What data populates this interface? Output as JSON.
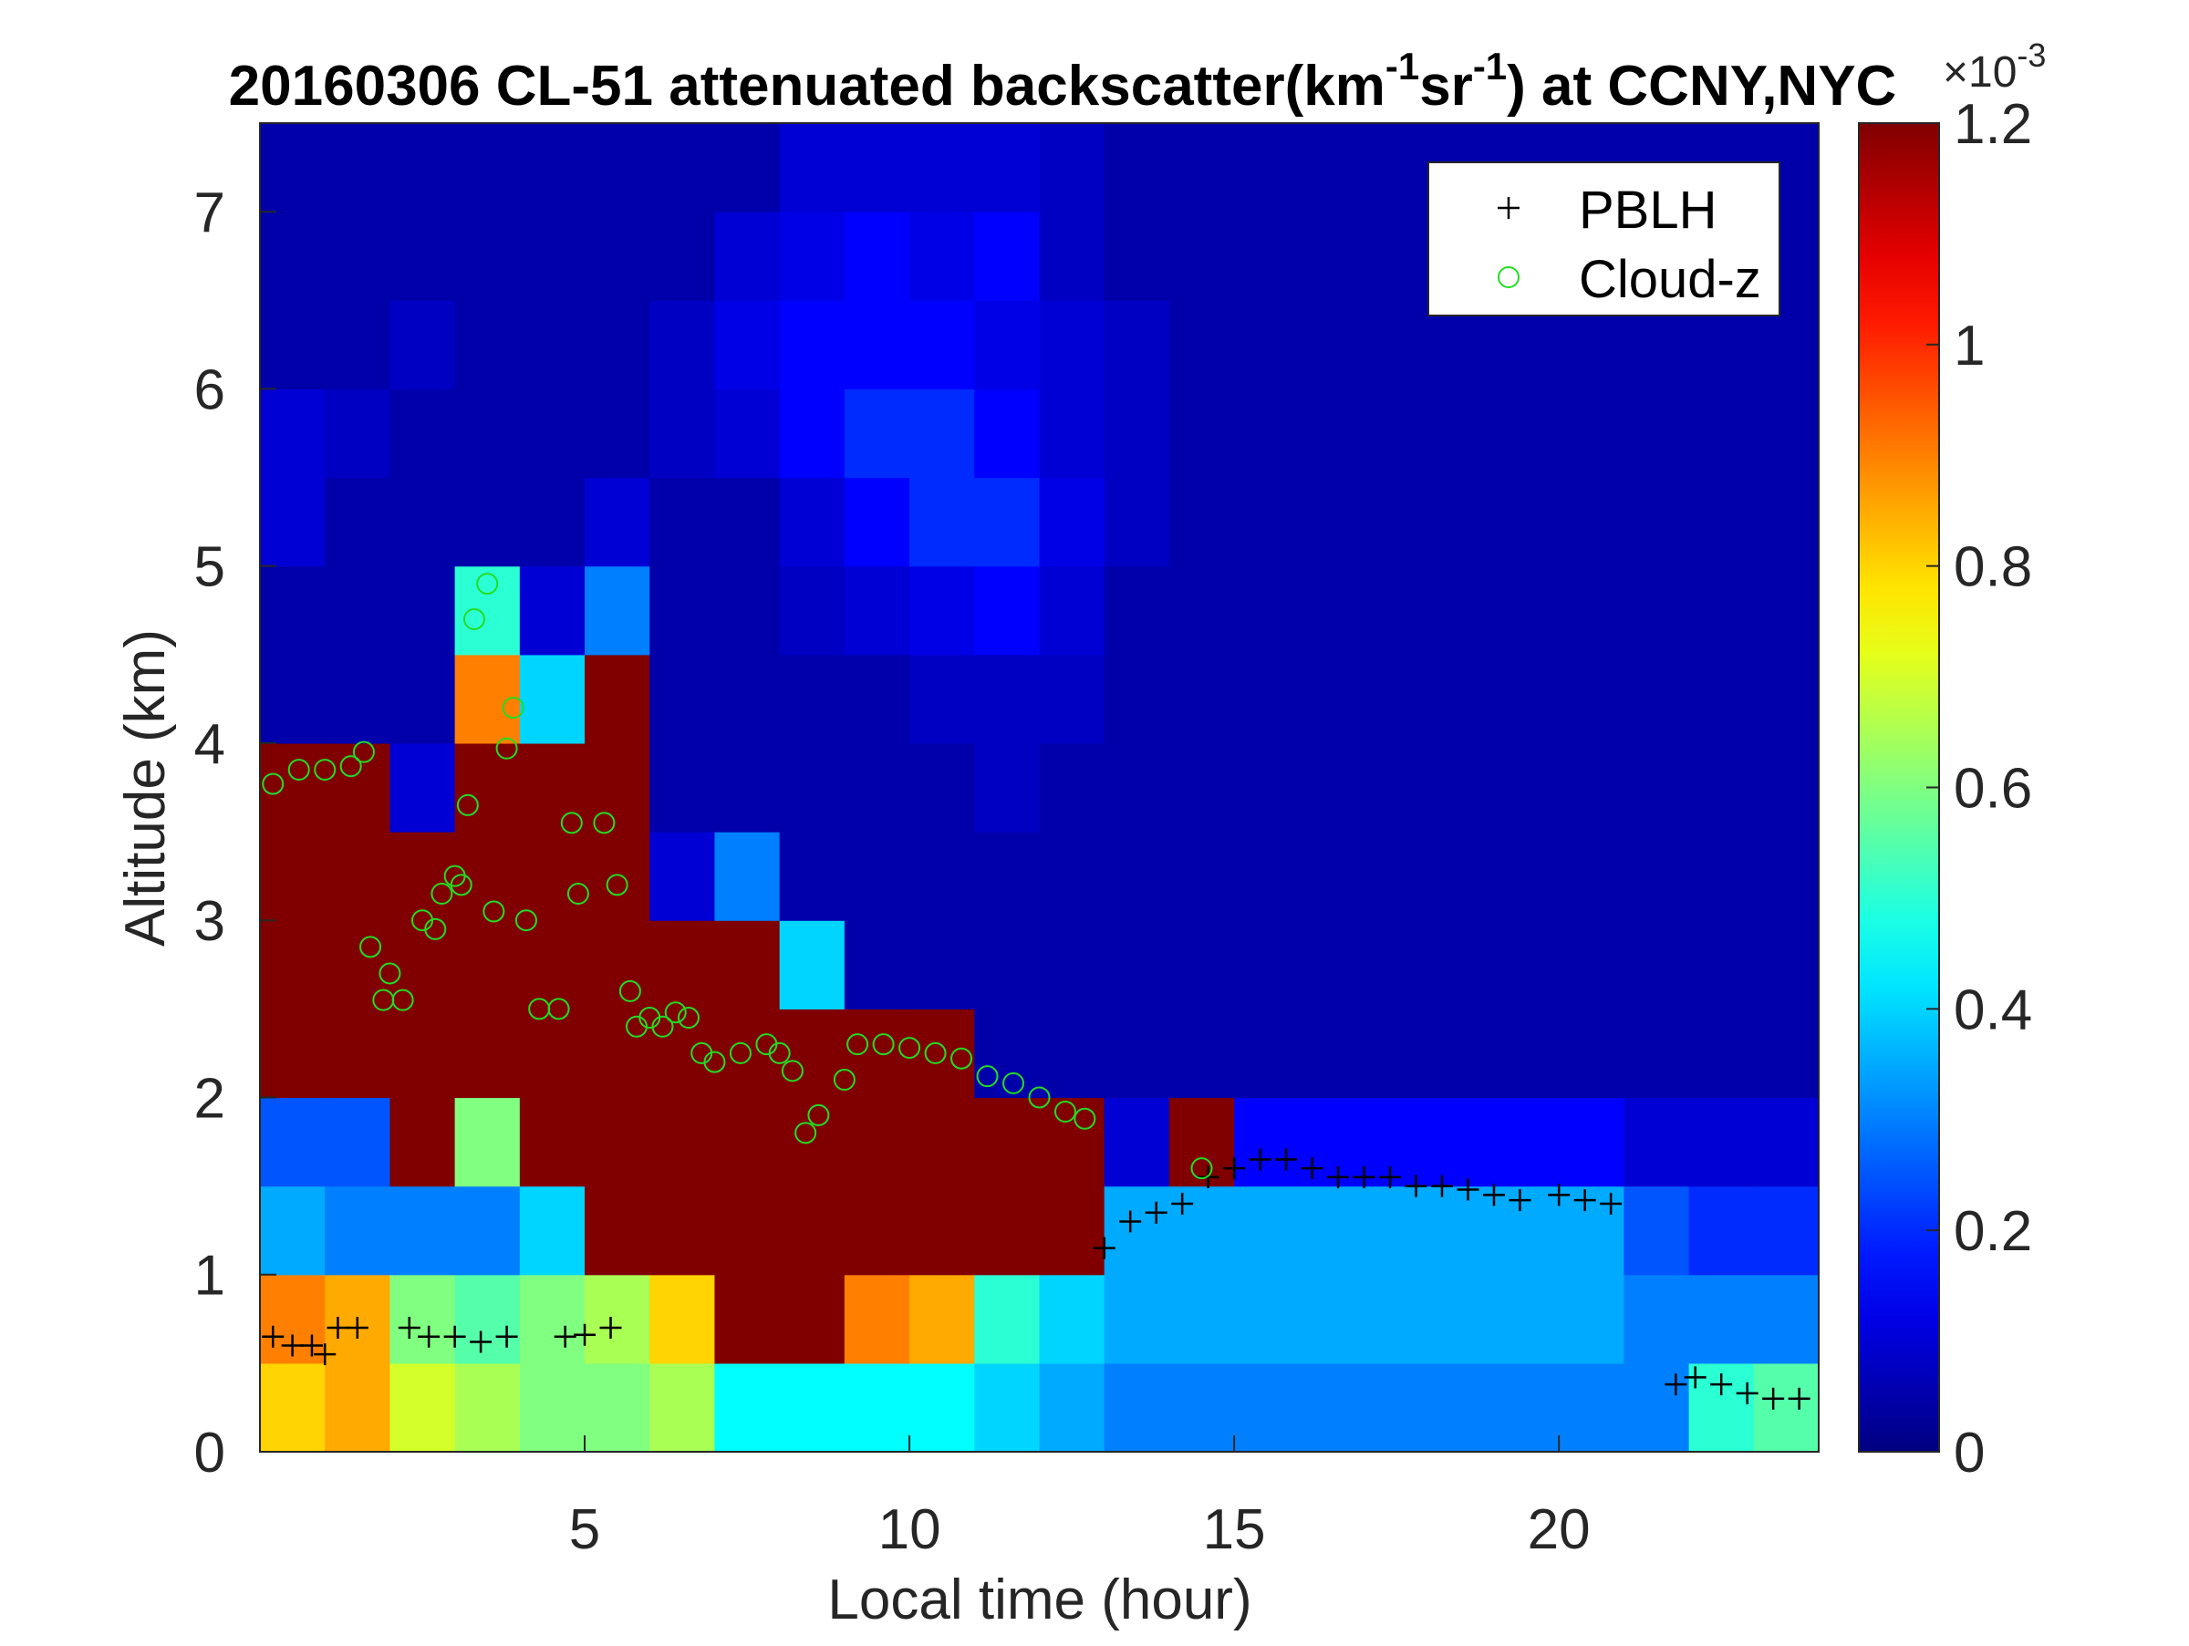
{
  "chart_data": {
    "type": "heatmap",
    "title": [
      "20160306  CL-51 attenuated backscatter(km",
      "-1",
      "sr",
      "-1",
      ") at CCNY,NYC"
    ],
    "x_label": "Local time (hour)",
    "y_label": "Altitude (km)",
    "colorbar_label": [
      "×10",
      "-3"
    ],
    "colormap": "jet",
    "xlim": [
      0,
      24
    ],
    "xticks": [
      5,
      10,
      15,
      20
    ],
    "ylim": [
      0,
      7.5
    ],
    "yticks": [
      0,
      1,
      2,
      3,
      4,
      5,
      6,
      7
    ],
    "clim": [
      0,
      1.2
    ],
    "cticks": [
      0,
      0.2,
      0.4,
      0.6,
      0.8,
      1,
      1.2
    ],
    "x": [
      0.5,
      1.5,
      2.5,
      3.5,
      4.5,
      5.5,
      6.5,
      7.5,
      8.5,
      9.5,
      10.5,
      11.5,
      12.5,
      13.5,
      14.5,
      15.5,
      16.5,
      17.5,
      18.5,
      19.5,
      20.5,
      21.5,
      22.5,
      23.5
    ],
    "y": [
      0.25,
      0.75,
      1.25,
      1.75,
      2.25,
      2.75,
      3.25,
      3.75,
      4.25,
      4.75,
      5.25,
      5.75,
      6.25,
      6.75,
      7.25
    ],
    "z": [
      [
        0.8,
        0.9,
        0.35,
        0.25,
        1.2,
        1.2,
        1.2,
        1.2,
        0.05,
        0.05,
        0.1,
        0.1,
        0.05,
        0.05,
        0.05
      ],
      [
        0.85,
        0.85,
        0.3,
        0.25,
        1.2,
        1.2,
        1.2,
        1.2,
        0.05,
        0.05,
        0.05,
        0.08,
        0.05,
        0.05,
        0.05
      ],
      [
        0.7,
        0.6,
        0.3,
        1.2,
        1.2,
        1.2,
        1.2,
        0.1,
        0.05,
        0.05,
        0.05,
        0.05,
        0.08,
        0.05,
        0.05
      ],
      [
        0.65,
        0.55,
        0.3,
        0.6,
        1.2,
        1.2,
        1.2,
        1.2,
        0.9,
        0.5,
        0.05,
        0.05,
        0.05,
        0.05,
        0.05
      ],
      [
        0.6,
        0.6,
        0.4,
        1.2,
        1.2,
        1.2,
        1.2,
        1.2,
        0.4,
        0.1,
        0.05,
        0.05,
        0.05,
        0.05,
        0.05
      ],
      [
        0.6,
        0.65,
        1.2,
        1.2,
        1.2,
        1.2,
        1.2,
        1.2,
        1.2,
        0.3,
        0.1,
        0.05,
        0.05,
        0.05,
        0.05
      ],
      [
        0.65,
        0.8,
        1.2,
        1.2,
        1.2,
        1.2,
        0.1,
        0.05,
        0.05,
        0.05,
        0.05,
        0.08,
        0.08,
        0.05,
        0.05
      ],
      [
        0.45,
        1.2,
        1.2,
        1.2,
        1.2,
        1.2,
        0.3,
        0.05,
        0.05,
        0.05,
        0.05,
        0.1,
        0.12,
        0.1,
        0.05
      ],
      [
        0.45,
        1.2,
        1.2,
        1.2,
        1.2,
        0.4,
        0.05,
        0.05,
        0.05,
        0.08,
        0.1,
        0.15,
        0.15,
        0.12,
        0.1
      ],
      [
        0.45,
        0.9,
        1.2,
        1.2,
        1.2,
        0.05,
        0.05,
        0.05,
        0.05,
        0.1,
        0.15,
        0.2,
        0.15,
        0.15,
        0.1
      ],
      [
        0.45,
        0.85,
        1.2,
        1.2,
        1.2,
        0.05,
        0.05,
        0.05,
        0.08,
        0.12,
        0.2,
        0.2,
        0.15,
        0.12,
        0.1
      ],
      [
        0.4,
        0.5,
        1.2,
        1.2,
        0.05,
        0.05,
        0.05,
        0.08,
        0.08,
        0.15,
        0.2,
        0.15,
        0.12,
        0.15,
        0.1
      ],
      [
        0.35,
        0.4,
        1.2,
        1.2,
        0.05,
        0.05,
        0.05,
        0.05,
        0.08,
        0.1,
        0.12,
        0.1,
        0.1,
        0.08,
        0.08
      ],
      [
        0.3,
        0.35,
        0.35,
        0.1,
        0.05,
        0.05,
        0.05,
        0.05,
        0.05,
        0.05,
        0.08,
        0.08,
        0.08,
        0.05,
        0.05
      ],
      [
        0.3,
        0.35,
        0.35,
        1.2,
        0.05,
        0.05,
        0.05,
        0.05,
        0.05,
        0.05,
        0.05,
        0.05,
        0.05,
        0.05,
        0.05
      ],
      [
        0.3,
        0.35,
        0.35,
        0.15,
        0.05,
        0.05,
        0.05,
        0.05,
        0.05,
        0.05,
        0.05,
        0.05,
        0.05,
        0.05,
        0.05
      ],
      [
        0.3,
        0.35,
        0.35,
        0.15,
        0.05,
        0.05,
        0.05,
        0.05,
        0.05,
        0.05,
        0.05,
        0.05,
        0.05,
        0.05,
        0.05
      ],
      [
        0.3,
        0.35,
        0.35,
        0.15,
        0.05,
        0.05,
        0.05,
        0.05,
        0.05,
        0.05,
        0.05,
        0.05,
        0.05,
        0.05,
        0.05
      ],
      [
        0.3,
        0.35,
        0.35,
        0.15,
        0.05,
        0.05,
        0.05,
        0.05,
        0.05,
        0.05,
        0.05,
        0.05,
        0.05,
        0.05,
        0.05
      ],
      [
        0.3,
        0.35,
        0.35,
        0.15,
        0.05,
        0.05,
        0.05,
        0.05,
        0.05,
        0.05,
        0.05,
        0.05,
        0.05,
        0.05,
        0.05
      ],
      [
        0.3,
        0.35,
        0.35,
        0.15,
        0.05,
        0.05,
        0.05,
        0.05,
        0.05,
        0.05,
        0.05,
        0.05,
        0.05,
        0.05,
        0.05
      ],
      [
        0.3,
        0.3,
        0.25,
        0.1,
        0.05,
        0.05,
        0.05,
        0.05,
        0.05,
        0.05,
        0.05,
        0.05,
        0.05,
        0.05,
        0.05
      ],
      [
        0.5,
        0.3,
        0.2,
        0.1,
        0.05,
        0.05,
        0.05,
        0.05,
        0.05,
        0.05,
        0.05,
        0.05,
        0.05,
        0.05,
        0.05
      ],
      [
        0.55,
        0.3,
        0.2,
        0.1,
        0.05,
        0.05,
        0.05,
        0.05,
        0.05,
        0.05,
        0.05,
        0.05,
        0.05,
        0.05,
        0.05
      ]
    ],
    "legend": "upper right",
    "series": [
      {
        "name": "PBLH",
        "color": "#000000",
        "marker": "+",
        "x": [
          0.2,
          0.5,
          0.8,
          1.0,
          1.2,
          1.5,
          2.3,
          2.6,
          3.0,
          3.4,
          3.8,
          4.7,
          5.0,
          5.4,
          13.0,
          13.4,
          13.8,
          14.2,
          14.6,
          15.0,
          15.4,
          15.8,
          16.2,
          16.6,
          17.0,
          17.4,
          17.8,
          18.2,
          18.6,
          19.0,
          19.4,
          20.0,
          20.4,
          20.8,
          21.8,
          22.1,
          22.5,
          22.9,
          23.3,
          23.7
        ],
        "values": [
          0.65,
          0.6,
          0.6,
          0.55,
          0.7,
          0.7,
          0.7,
          0.65,
          0.65,
          0.62,
          0.65,
          0.65,
          0.66,
          0.7,
          1.15,
          1.3,
          1.35,
          1.4,
          1.55,
          1.6,
          1.65,
          1.65,
          1.6,
          1.55,
          1.55,
          1.55,
          1.5,
          1.5,
          1.48,
          1.45,
          1.42,
          1.45,
          1.42,
          1.4,
          0.38,
          0.42,
          0.38,
          0.33,
          0.3,
          0.3
        ]
      },
      {
        "name": "Cloud-z",
        "color": "#22dd22",
        "marker": "o",
        "x": [
          0.2,
          0.6,
          1.0,
          1.4,
          1.6,
          1.7,
          1.9,
          2.0,
          2.2,
          2.5,
          2.7,
          2.8,
          3.0,
          3.1,
          3.2,
          3.3,
          3.5,
          3.6,
          3.8,
          3.9,
          4.1,
          4.3,
          4.6,
          4.8,
          4.9,
          5.3,
          5.5,
          5.7,
          5.8,
          6.0,
          6.2,
          6.4,
          6.6,
          6.8,
          7.0,
          7.4,
          7.8,
          8.0,
          8.2,
          8.4,
          8.6,
          9.0,
          9.2,
          9.6,
          10.0,
          10.4,
          10.8,
          11.2,
          11.6,
          12.0,
          12.4,
          12.7,
          14.5
        ],
        "values": [
          3.77,
          3.85,
          3.85,
          3.87,
          3.95,
          2.85,
          2.55,
          2.7,
          2.55,
          3.0,
          2.95,
          3.15,
          3.25,
          3.2,
          3.65,
          4.7,
          4.9,
          3.05,
          3.97,
          4.2,
          3.0,
          2.5,
          2.5,
          3.55,
          3.15,
          3.55,
          3.2,
          2.6,
          2.4,
          2.45,
          2.4,
          2.48,
          2.45,
          2.25,
          2.2,
          2.25,
          2.3,
          2.25,
          2.15,
          1.8,
          1.9,
          2.1,
          2.3,
          2.3,
          2.28,
          2.25,
          2.22,
          2.12,
          2.08,
          2.0,
          1.92,
          1.88,
          1.6
        ]
      }
    ]
  }
}
